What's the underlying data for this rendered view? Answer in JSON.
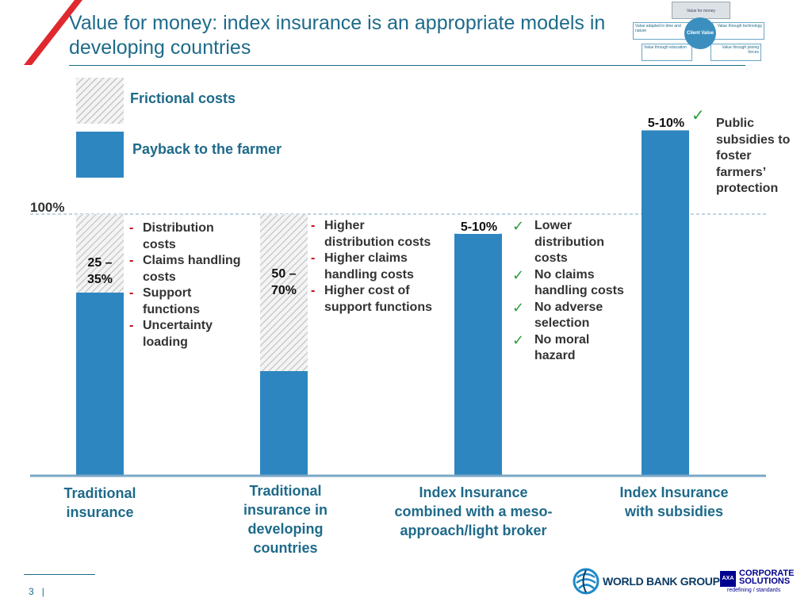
{
  "slide": {
    "title": "Value for money: index insurance is an appropriate models in developing countries",
    "page_number": "3",
    "page_separator": "|"
  },
  "mini_diagram": {
    "top": "Value for money",
    "left_top": "Value adapted in time and nature",
    "center": "Client Value",
    "right_top": "Value through technology",
    "left_bottom": "Value through education",
    "right_bottom": "Value through joining forces"
  },
  "legend": {
    "frictional": "Frictional costs",
    "payback": "Payback to the farmer"
  },
  "chart_data": {
    "type": "bar",
    "stacked": true,
    "y_reference_label": "100%",
    "ylim": [
      0,
      135
    ],
    "categories": [
      "Traditional insurance",
      "Traditional insurance in developing countries",
      "Index Insurance combined with a meso-approach/light broker",
      "Index Insurance with subsidies"
    ],
    "series": [
      {
        "name": "Payback to the farmer",
        "values": [
          70,
          40,
          92.5,
          132
        ]
      },
      {
        "name": "Frictional costs",
        "values": [
          30,
          60,
          0,
          0
        ]
      }
    ],
    "segment_labels": [
      "25 – 35%",
      "50 – 70%",
      "5-10%",
      "5-10%"
    ],
    "annotations": {
      "traditional": [
        "Distribution costs",
        "Claims handling costs",
        "Support functions",
        "Uncertainty loading"
      ],
      "developing": [
        "Higher distribution costs",
        "Higher claims handling costs",
        "Higher cost of support functions"
      ],
      "index_meso": [
        "Lower distribution costs",
        "No claims handling costs",
        "No adverse selection",
        "No moral hazard"
      ],
      "index_subsidies": [
        "Public subsidies to foster farmers’ protection"
      ]
    },
    "colors": {
      "bar": "#2e86c0",
      "hatch_line": "#c8c8c8",
      "axis": "#7aa7c7",
      "reference_line": "#7aa7c7"
    }
  },
  "glyphs": {
    "dash": "-",
    "check": "✓"
  },
  "logos": {
    "worldbank": "WORLD BANK GROUP",
    "axa_box": "AXA",
    "axa_line1": "CORPORATE",
    "axa_line2": "SOLUTIONS",
    "axa_tagline": "redefining / standards"
  }
}
